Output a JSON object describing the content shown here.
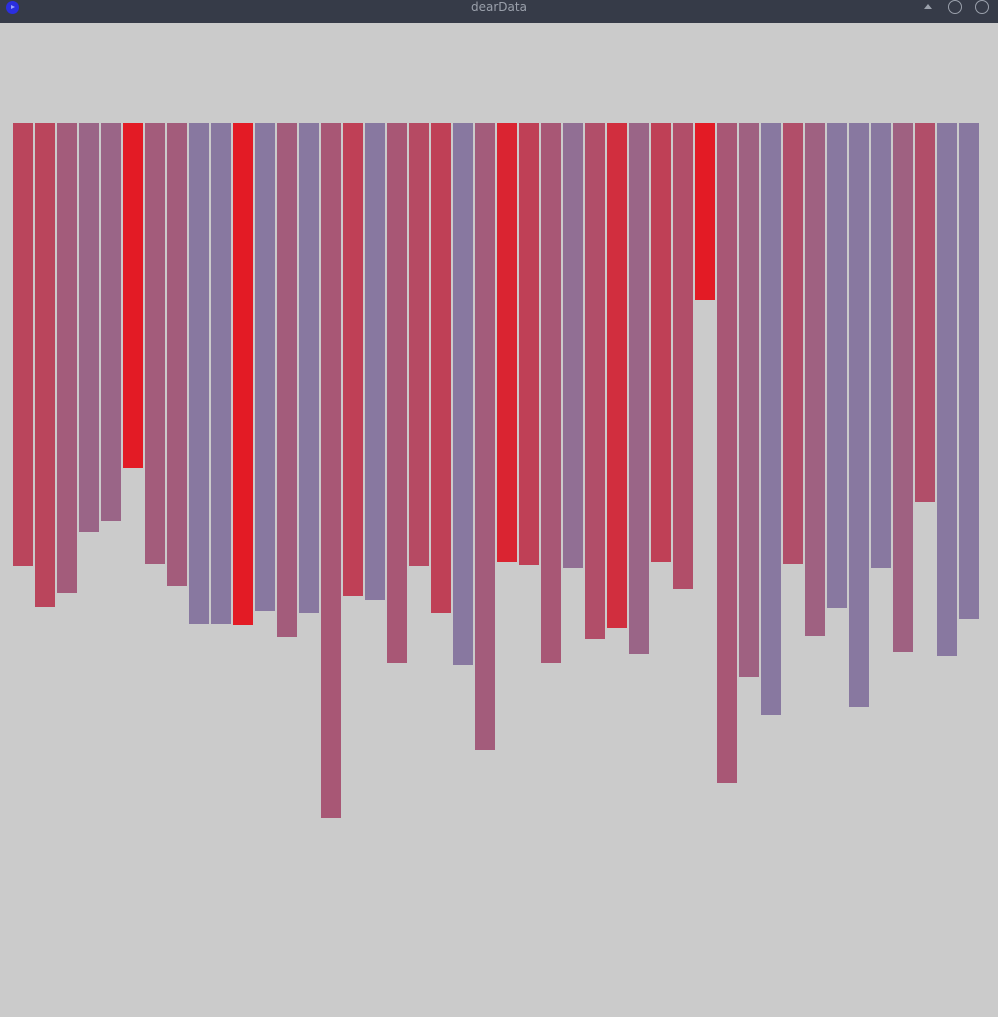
{
  "window": {
    "title": "dearData"
  },
  "colors": {
    "background": "#cbcbcb",
    "titlebar": "#363b48",
    "title_text": "#9aa0ab",
    "bar_red": "#e31b25",
    "bar_purple": "#8878a0"
  },
  "chart_data": {
    "type": "bar",
    "orientation": "downward",
    "values": [
      443,
      484,
      470,
      409,
      398,
      345,
      441,
      463,
      501,
      501,
      502,
      488,
      514,
      490,
      695,
      473,
      477,
      540,
      443,
      490,
      542,
      627,
      439,
      442,
      540,
      445,
      516,
      505,
      531,
      439,
      466,
      177,
      660,
      554,
      592,
      441,
      513,
      485,
      584,
      445,
      529,
      379,
      533,
      496
    ],
    "redness": [
      0.55,
      0.55,
      0.3,
      0.2,
      0.2,
      1.0,
      0.3,
      0.3,
      0.0,
      0.0,
      1.0,
      0.0,
      0.3,
      0.0,
      0.35,
      0.6,
      0.0,
      0.35,
      0.5,
      0.6,
      0.0,
      0.3,
      0.9,
      0.6,
      0.35,
      0.1,
      0.45,
      0.8,
      0.2,
      0.6,
      0.45,
      1.0,
      0.35,
      0.25,
      0.0,
      0.45,
      0.25,
      0.0,
      0.0,
      0.0,
      0.25,
      0.45,
      0.0,
      0.0
    ]
  }
}
